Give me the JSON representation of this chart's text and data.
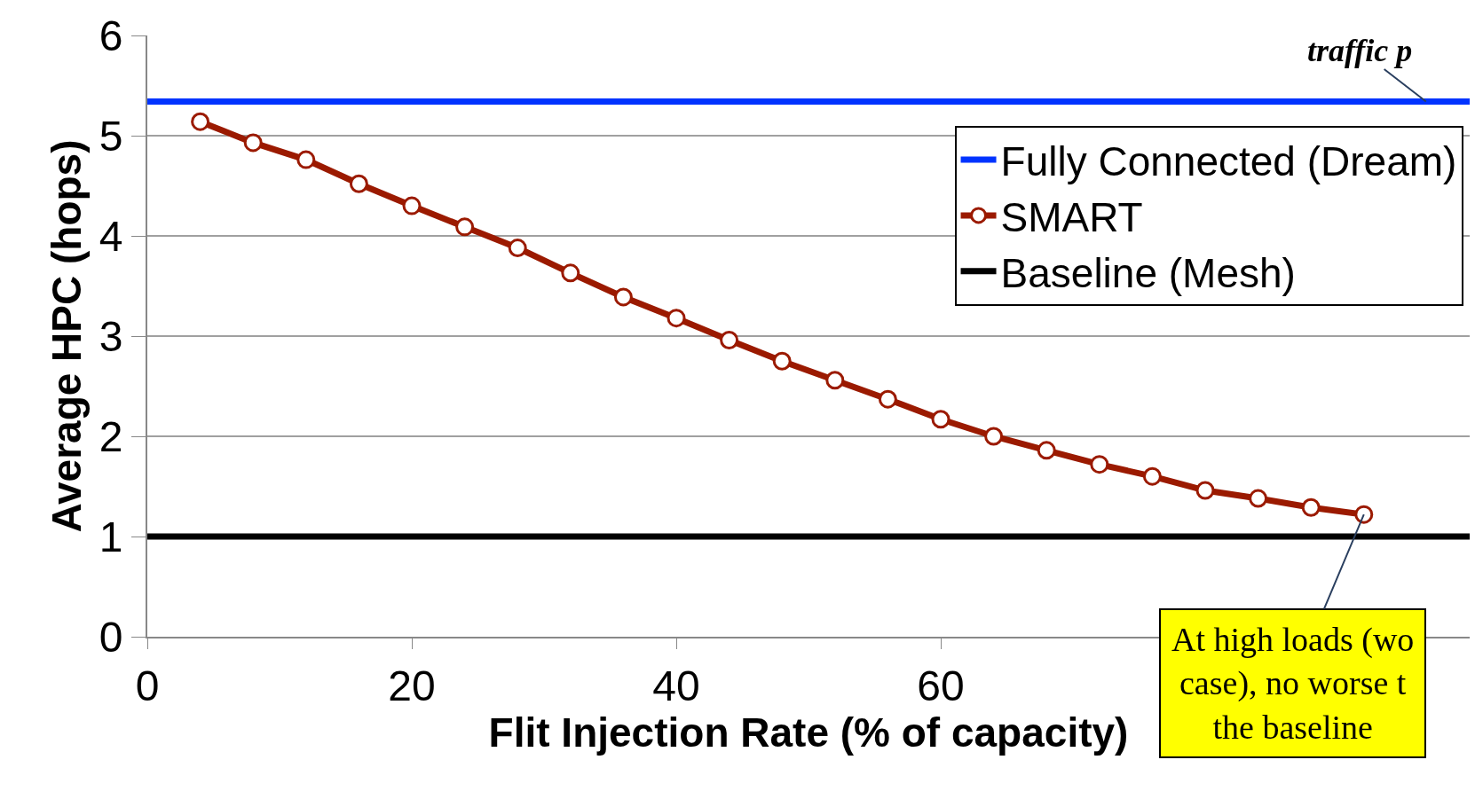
{
  "chart_data": {
    "type": "line",
    "xlabel": "Flit Injection Rate (% of capacity)",
    "ylabel": "Average HPC (hops)",
    "xlim": [
      0,
      100
    ],
    "xticks": [
      0,
      20,
      40,
      60
    ],
    "ylim": [
      0,
      6
    ],
    "yticks": [
      0,
      1,
      2,
      3,
      4,
      5,
      6
    ],
    "grid": "y",
    "legend": "top right",
    "series": [
      {
        "name": "Fully Connected (Dream)",
        "color": "#0033ff",
        "x": [
          0,
          100
        ],
        "values": [
          5.34,
          5.34
        ],
        "marker": "none"
      },
      {
        "name": "SMART",
        "color": "#9b1a00",
        "x": [
          4,
          8,
          12,
          16,
          20,
          24,
          28,
          32,
          36,
          40,
          44,
          48,
          52,
          56,
          60,
          64,
          68,
          72,
          76,
          80,
          84,
          88,
          92
        ],
        "values": [
          5.14,
          4.93,
          4.76,
          4.52,
          4.3,
          4.09,
          3.88,
          3.63,
          3.39,
          3.18,
          2.96,
          2.75,
          2.56,
          2.37,
          2.17,
          2.0,
          1.86,
          1.72,
          1.6,
          1.46,
          1.38,
          1.29,
          1.22
        ],
        "marker": "circle"
      },
      {
        "name": "Baseline (Mesh)",
        "color": "#000000",
        "x": [
          0,
          100
        ],
        "values": [
          1.0,
          1.0
        ],
        "marker": "none"
      }
    ],
    "annotations": [
      {
        "text": "traffic p",
        "x": 96.7,
        "y": 5.34
      },
      {
        "text": "At high loads (wo\ncase), no worse t\nthe baseline",
        "x": 92,
        "y": 1.22
      }
    ]
  }
}
